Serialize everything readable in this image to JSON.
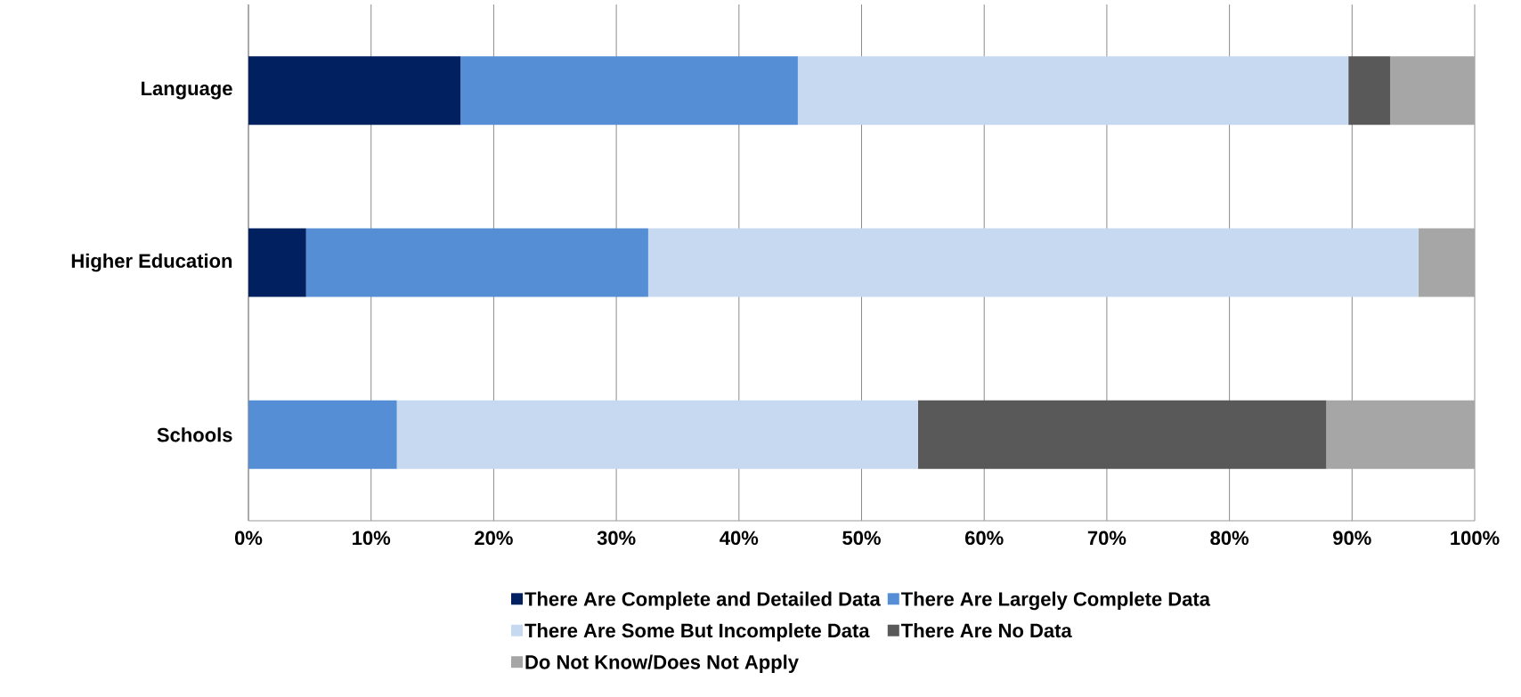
{
  "chart_data": {
    "type": "bar",
    "orientation": "horizontal",
    "stacked": true,
    "grid": "x",
    "legend": "bottom",
    "categories": [
      "Language",
      "Higher Education",
      "Schools"
    ],
    "series": [
      {
        "name": "There Are Complete and Detailed Data",
        "color": "#002060",
        "values": [
          17.3,
          4.7,
          0
        ]
      },
      {
        "name": "There Are Largely Complete Data",
        "color": "#558ed5",
        "values": [
          27.5,
          27.9,
          12.1
        ]
      },
      {
        "name": "There Are Some But Incomplete Data",
        "color": "#c6d9f1",
        "values": [
          44.9,
          62.8,
          42.5
        ]
      },
      {
        "name": "There Are No Data",
        "color": "#595959",
        "values": [
          3.4,
          0,
          33.3
        ]
      },
      {
        "name": "Do Not Know/Does Not Apply",
        "color": "#a6a6a6",
        "values": [
          6.9,
          4.6,
          12.1
        ]
      }
    ],
    "xlim": [
      0,
      100
    ],
    "xticks": [
      {
        "value": 0,
        "label": "0%"
      },
      {
        "value": 10,
        "label": "10%"
      },
      {
        "value": 20,
        "label": "20%"
      },
      {
        "value": 30,
        "label": "30%"
      },
      {
        "value": 40,
        "label": "40%"
      },
      {
        "value": 50,
        "label": "50%"
      },
      {
        "value": 60,
        "label": "60%"
      },
      {
        "value": 70,
        "label": "70%"
      },
      {
        "value": 80,
        "label": "80%"
      },
      {
        "value": 90,
        "label": "90%"
      },
      {
        "value": 100,
        "label": "100%"
      }
    ]
  }
}
